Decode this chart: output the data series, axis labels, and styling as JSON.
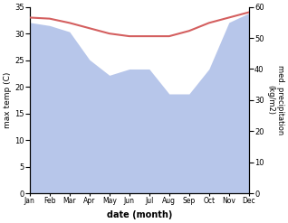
{
  "months": [
    "Jan",
    "Feb",
    "Mar",
    "Apr",
    "May",
    "Jun",
    "Jul",
    "Aug",
    "Sep",
    "Oct",
    "Nov",
    "Dec"
  ],
  "max_temp": [
    33,
    32.8,
    32,
    31,
    30,
    29.5,
    29.5,
    29.5,
    30.5,
    32,
    33,
    34
  ],
  "precipitation": [
    55,
    54,
    52,
    43,
    38,
    40,
    40,
    32,
    32,
    40,
    55,
    58
  ],
  "temp_color": "#d45f5f",
  "precip_color": "#b0c0e8",
  "temp_ylim": [
    0,
    35
  ],
  "precip_ylim": [
    0,
    60
  ],
  "temp_yticks": [
    0,
    5,
    10,
    15,
    20,
    25,
    30,
    35
  ],
  "precip_yticks": [
    0,
    10,
    20,
    30,
    40,
    50,
    60
  ],
  "xlabel": "date (month)",
  "ylabel_left": "max temp (C)",
  "ylabel_right": "med. precipitation\n(kg/m2)",
  "background_color": "#ffffff"
}
